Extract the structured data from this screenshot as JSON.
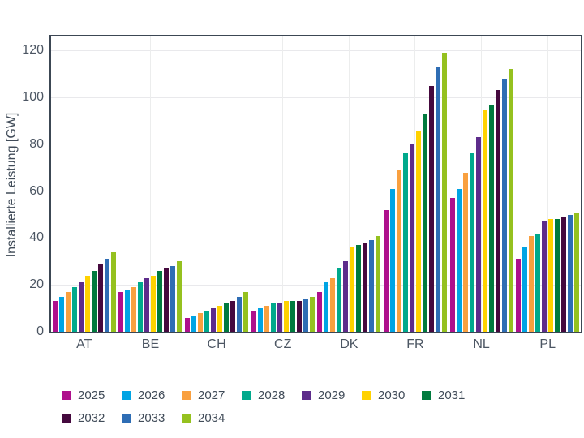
{
  "chart_data": {
    "type": "bar",
    "title": "",
    "ylabel": "Installierte Leistung [GW]",
    "xlabel": "",
    "categories": [
      "AT",
      "BE",
      "CH",
      "CZ",
      "DK",
      "FR",
      "NL",
      "PL"
    ],
    "series": [
      {
        "name": "2025",
        "color": "#ae108c",
        "values": [
          13,
          17,
          6,
          9,
          17,
          52,
          57,
          31
        ]
      },
      {
        "name": "2026",
        "color": "#00a4e4",
        "values": [
          15,
          18,
          7,
          10,
          21,
          61,
          61,
          36
        ]
      },
      {
        "name": "2027",
        "color": "#f9a03f",
        "values": [
          17,
          19,
          8,
          11,
          23,
          69,
          68,
          41
        ]
      },
      {
        "name": "2028",
        "color": "#00a98c",
        "values": [
          19,
          21,
          9,
          12,
          27,
          76,
          76,
          42
        ]
      },
      {
        "name": "2029",
        "color": "#5d2c8b",
        "values": [
          21,
          23,
          10,
          12,
          30,
          80,
          83,
          47
        ]
      },
      {
        "name": "2030",
        "color": "#ffd200",
        "values": [
          24,
          24,
          11,
          13,
          36,
          86,
          95,
          48
        ]
      },
      {
        "name": "2031",
        "color": "#007a3e",
        "values": [
          26,
          26,
          12,
          13,
          37,
          93,
          97,
          48
        ]
      },
      {
        "name": "2032",
        "color": "#45093e",
        "values": [
          29,
          27,
          13,
          13,
          38,
          105,
          103,
          49
        ]
      },
      {
        "name": "2033",
        "color": "#2e6db4",
        "values": [
          31,
          28,
          15,
          14,
          39,
          113,
          108,
          50
        ]
      },
      {
        "name": "2034",
        "color": "#95c11f",
        "values": [
          34,
          30,
          17,
          15,
          41,
          119,
          112,
          51
        ]
      }
    ],
    "yticks": [
      0,
      20,
      40,
      60,
      80,
      100,
      120
    ],
    "ylim": [
      0,
      126
    ],
    "grid": true,
    "legend_position": "bottom"
  },
  "colors": {
    "axis_border": "#3c4754",
    "gridline": "#e9e9ec",
    "tick_text": "#4c5663",
    "label_text": "#414c59"
  }
}
